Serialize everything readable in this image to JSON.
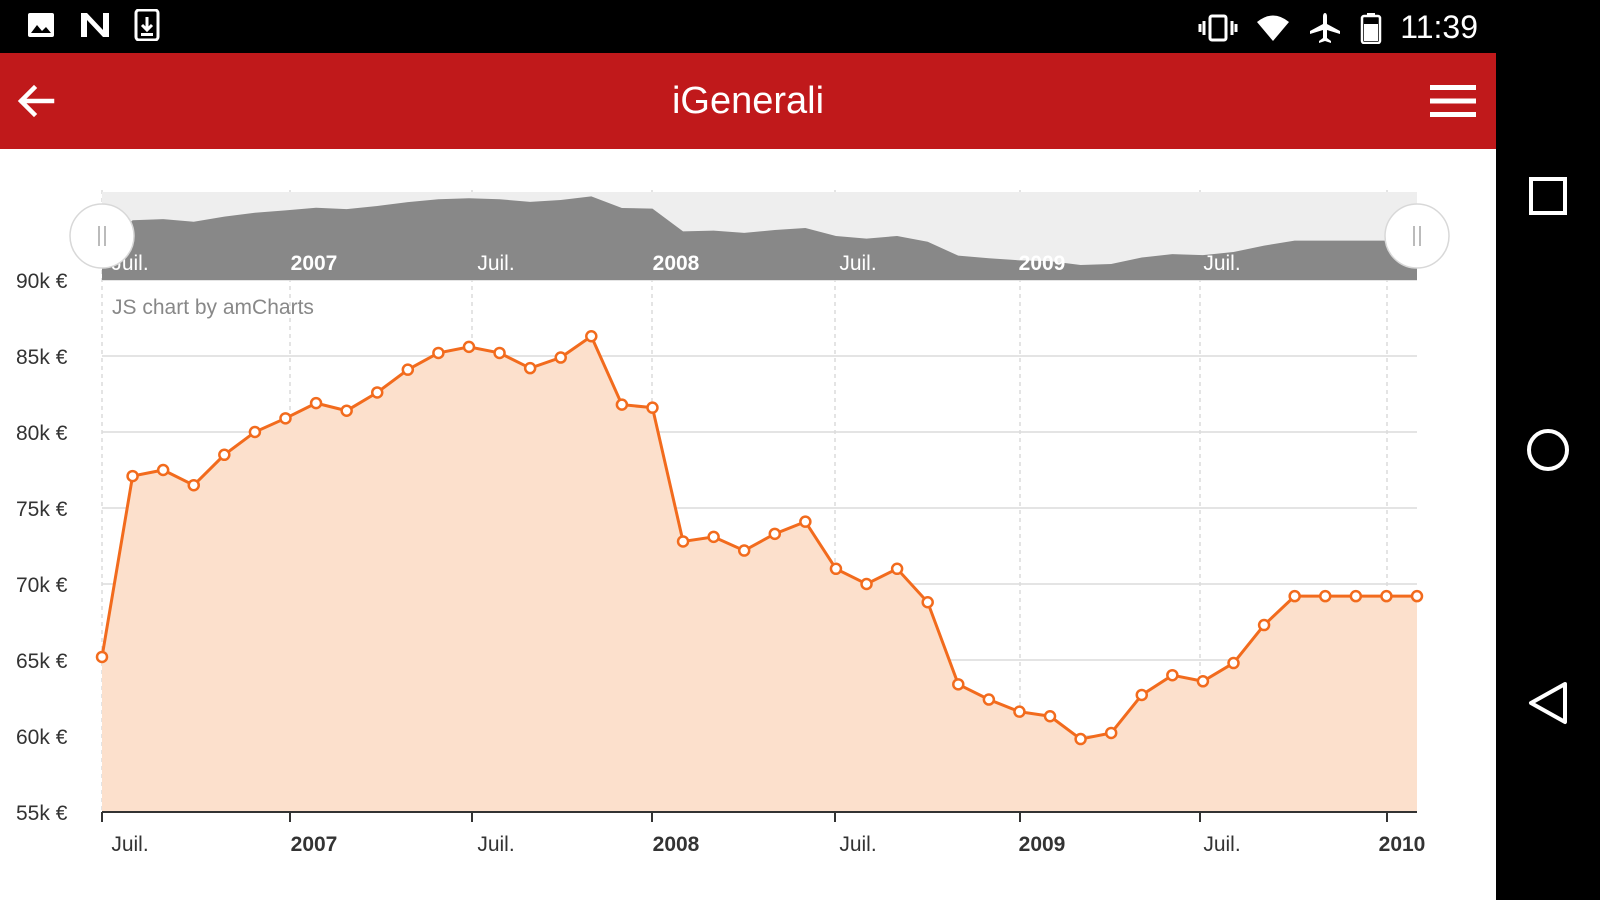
{
  "status_bar": {
    "time": "11:39",
    "left_icons": [
      "image-icon",
      "n-notification-icon",
      "download-icon"
    ],
    "right_icons": [
      "vibrate-icon",
      "wifi-icon",
      "airplane-mode-icon",
      "battery-icon"
    ]
  },
  "app_bar": {
    "title": "iGenerali",
    "back_icon": "arrow-left-icon",
    "menu_icon": "hamburger-menu-icon",
    "color": "#c0191b"
  },
  "nav_bar": {
    "buttons": [
      "overview-square-icon",
      "home-circle-icon",
      "back-triangle-icon"
    ]
  },
  "chart_data": {
    "type": "area",
    "credit": "JS chart by amCharts",
    "ylim": [
      55000,
      90000
    ],
    "y_ticks": [
      "55k €",
      "60k €",
      "65k €",
      "70k €",
      "75k €",
      "80k €",
      "85k €",
      "90k €"
    ],
    "x_ticks": [
      {
        "label": "Juil.",
        "bold": false
      },
      {
        "label": "2007",
        "bold": true
      },
      {
        "label": "Juil.",
        "bold": false
      },
      {
        "label": "2008",
        "bold": true
      },
      {
        "label": "Juil.",
        "bold": false
      },
      {
        "label": "2009",
        "bold": true
      },
      {
        "label": "Juil.",
        "bold": false
      },
      {
        "label": "2010",
        "bold": true
      }
    ],
    "line_color": "#f26b1d",
    "fill_color": "#fce0cc",
    "values": [
      65200,
      77100,
      77500,
      76500,
      78500,
      80000,
      80900,
      81900,
      81400,
      82600,
      84100,
      85200,
      85600,
      85200,
      84200,
      84900,
      86300,
      81800,
      81600,
      72800,
      73100,
      72200,
      73300,
      74100,
      71000,
      70000,
      71000,
      68800,
      63400,
      62400,
      61600,
      61300,
      59800,
      60200,
      62700,
      64000,
      63600,
      64800,
      67300,
      69200,
      69200,
      69200,
      69200,
      69200
    ],
    "scrollbar": {
      "labels": [
        {
          "label": "Juil.",
          "bold": false
        },
        {
          "label": "2007",
          "bold": true
        },
        {
          "label": "Juil.",
          "bold": false
        },
        {
          "label": "2008",
          "bold": true
        },
        {
          "label": "Juil.",
          "bold": false
        },
        {
          "label": "2009",
          "bold": true
        },
        {
          "label": "Juil.",
          "bold": false
        }
      ]
    }
  }
}
